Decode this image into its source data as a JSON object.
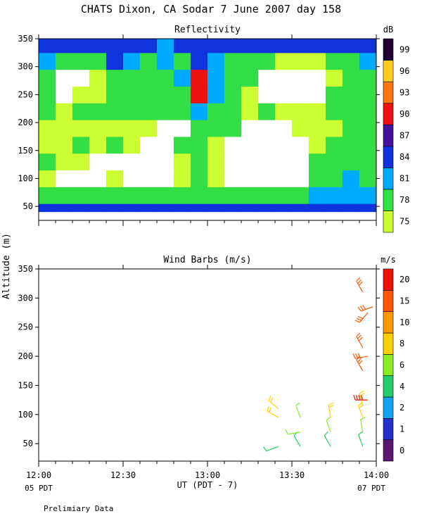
{
  "title": "CHATS Dixon, CA  Sodar   7 June 2007  day 158",
  "footer_note": "Prelimiary Data",
  "chart_data": [
    {
      "type": "heatmap",
      "title": "Reflectivity",
      "units": "dB",
      "ylabel": "",
      "ylim": [
        25,
        350
      ],
      "yticks": [
        "50",
        "100",
        "150",
        "200",
        "250",
        "300",
        "350"
      ],
      "colorbar_ticks": [
        "75",
        "78",
        "81",
        "84",
        "87",
        "90",
        "93",
        "96",
        "99"
      ],
      "colorbar_colors": [
        "#ccff33",
        "#33dd44",
        "#00aaff",
        "#1133dd",
        "#44129a",
        "#ee1111",
        "#ff7711",
        "#ffcc22",
        "#220033"
      ],
      "background_value_note": "white = below 75",
      "x_hours": [
        12.0,
        12.1,
        12.2,
        12.3,
        12.4,
        12.5,
        12.6,
        12.7,
        12.8,
        12.9,
        13.0,
        13.1,
        13.2,
        13.3,
        13.4,
        13.5,
        13.6,
        13.7,
        13.8,
        13.9
      ],
      "y_altitudes": [
        40,
        70,
        100,
        130,
        160,
        190,
        220,
        250,
        280,
        310,
        340
      ],
      "grid_values": [
        [
          85,
          84,
          84,
          84,
          86,
          84,
          84,
          84,
          84,
          84,
          84,
          84,
          84,
          84,
          84,
          84,
          84,
          84,
          84,
          84
        ],
        [
          79,
          78,
          78,
          78,
          79,
          78,
          78,
          78,
          79,
          78,
          78,
          78,
          79,
          79,
          80,
          80,
          81,
          82,
          82,
          82
        ],
        [
          76,
          70,
          70,
          70,
          75,
          70,
          70,
          70,
          76,
          78,
          76,
          70,
          70,
          70,
          70,
          70,
          78,
          80,
          81,
          80
        ],
        [
          78,
          76,
          76,
          70,
          70,
          70,
          70,
          70,
          76,
          79,
          76,
          70,
          70,
          70,
          70,
          70,
          78,
          79,
          79,
          79
        ],
        [
          76,
          77,
          79,
          76,
          78,
          76,
          70,
          70,
          78,
          80,
          77,
          70,
          70,
          70,
          70,
          72,
          76,
          78,
          78,
          78
        ],
        [
          76,
          76,
          76,
          76,
          76,
          76,
          76,
          70,
          70,
          78,
          79,
          78,
          70,
          70,
          70,
          76,
          76,
          76,
          78,
          78
        ],
        [
          79,
          75,
          78,
          79,
          78,
          79,
          78,
          78,
          79,
          82,
          79,
          78,
          76,
          78,
          76,
          76,
          76,
          79,
          79,
          79
        ],
        [
          80,
          70,
          76,
          76,
          78,
          80,
          78,
          79,
          80,
          90,
          82,
          78,
          76,
          70,
          70,
          70,
          70,
          78,
          80,
          80
        ],
        [
          79,
          70,
          70,
          76,
          78,
          78,
          80,
          79,
          83,
          91,
          83,
          80,
          78,
          70,
          70,
          70,
          70,
          76,
          78,
          79
        ],
        [
          82,
          79,
          79,
          79,
          84,
          81,
          80,
          81,
          80,
          84,
          82,
          80,
          79,
          79,
          76,
          76,
          76,
          79,
          80,
          81
        ],
        [
          85,
          84,
          84,
          86,
          86,
          84,
          84,
          83,
          84,
          84,
          86,
          84,
          84,
          84,
          84,
          84,
          84,
          84,
          84,
          84
        ]
      ]
    },
    {
      "type": "scatter",
      "title": "Wind Barbs (m/s)",
      "units": "m/s",
      "ylabel": "Altitude (m)",
      "xlabel": "UT  (PDT - 7)",
      "ylim": [
        20,
        350
      ],
      "yticks": [
        "50",
        "100",
        "150",
        "200",
        "250",
        "300",
        "350"
      ],
      "colorbar_ticks": [
        "0",
        "1",
        "2",
        "4",
        "6",
        "8",
        "10",
        "15",
        "20"
      ],
      "colorbar_colors": [
        "#5a1870",
        "#2233cc",
        "#11a6ee",
        "#22cc66",
        "#88ee22",
        "#ffd000",
        "#ff9900",
        "#ff5500",
        "#ee1100"
      ],
      "barbs": [
        {
          "time": 13.42,
          "alt": 45,
          "speed": 4,
          "dir": 250
        },
        {
          "time": 13.42,
          "alt": 95,
          "speed": 8,
          "dir": 300
        },
        {
          "time": 13.42,
          "alt": 110,
          "speed": 8,
          "dir": 310
        },
        {
          "time": 13.55,
          "alt": 45,
          "speed": 5,
          "dir": 330
        },
        {
          "time": 13.55,
          "alt": 70,
          "speed": 6,
          "dir": 260
        },
        {
          "time": 13.55,
          "alt": 95,
          "speed": 6,
          "dir": 340
        },
        {
          "time": 13.73,
          "alt": 45,
          "speed": 5,
          "dir": 330
        },
        {
          "time": 13.73,
          "alt": 70,
          "speed": 6,
          "dir": 340
        },
        {
          "time": 13.73,
          "alt": 95,
          "speed": 8,
          "dir": 350
        },
        {
          "time": 13.92,
          "alt": 45,
          "speed": 4,
          "dir": 340
        },
        {
          "time": 13.92,
          "alt": 70,
          "speed": 6,
          "dir": 350
        },
        {
          "time": 13.92,
          "alt": 95,
          "speed": 8,
          "dir": 340
        },
        {
          "time": 13.92,
          "alt": 115,
          "speed": 8,
          "dir": 345
        },
        {
          "time": 13.95,
          "alt": 125,
          "speed": 20,
          "dir": 270
        },
        {
          "time": 13.92,
          "alt": 175,
          "speed": 15,
          "dir": 330
        },
        {
          "time": 13.95,
          "alt": 200,
          "speed": 15,
          "dir": 260
        },
        {
          "time": 13.92,
          "alt": 215,
          "speed": 15,
          "dir": 330
        },
        {
          "time": 13.95,
          "alt": 275,
          "speed": 15,
          "dir": 220
        },
        {
          "time": 13.98,
          "alt": 285,
          "speed": 15,
          "dir": 250
        },
        {
          "time": 13.92,
          "alt": 310,
          "speed": 15,
          "dir": 330
        }
      ]
    }
  ],
  "xaxis": {
    "range_hours": [
      12.0,
      14.0
    ],
    "tick_labels": [
      "12:00",
      "12:30",
      "13:00",
      "13:30",
      "14:00"
    ],
    "left_local": "05 PDT",
    "right_local": "07 PDT"
  }
}
